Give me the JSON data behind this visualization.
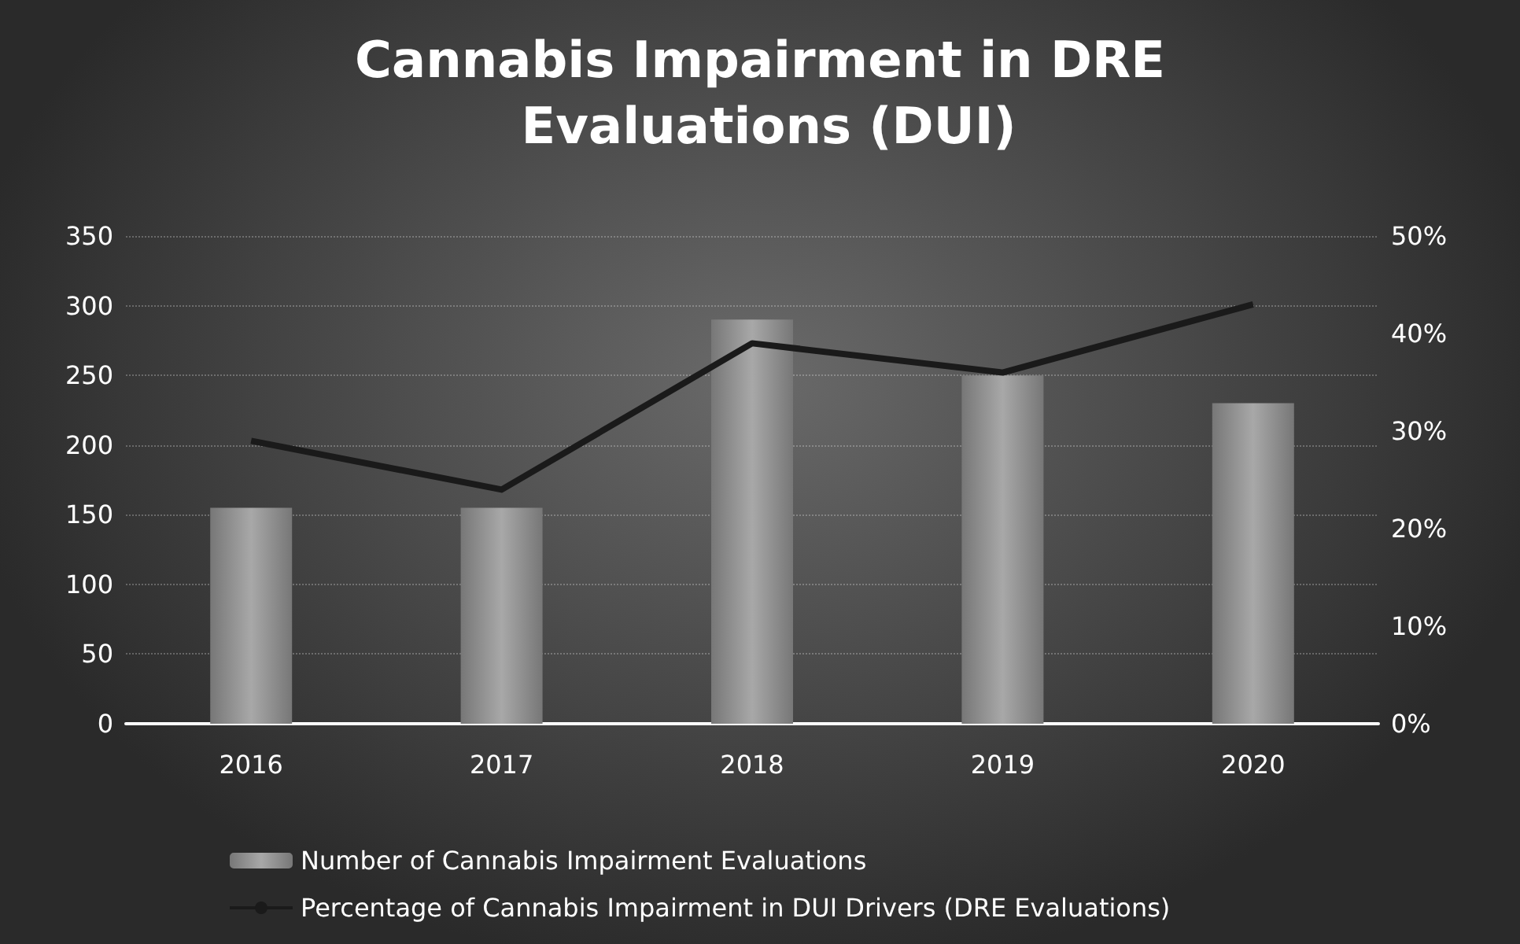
{
  "chart_data": {
    "type": "bar",
    "title": "Cannabis Impairment in DRE Evaluations (DUI)",
    "categories": [
      "2016",
      "2017",
      "2018",
      "2019",
      "2020"
    ],
    "series": [
      {
        "name": "Number of Cannabis Impairment Evaluations",
        "color": "#a8a8a8",
        "values": [
          155,
          155,
          290,
          250,
          230
        ]
      },
      {
        "name": "Percentage of Cannabis Impairment in DUI Drivers (DRE Evaluations)",
        "type": "line",
        "axis": "y2",
        "color": "#1a1a1a",
        "values": [
          29,
          24,
          39,
          36,
          43
        ]
      }
    ],
    "ylim": [
      0,
      350
    ],
    "yticks": [
      0,
      50,
      100,
      150,
      200,
      250,
      300,
      350
    ],
    "y2lim": [
      0,
      50
    ],
    "y2ticks": [
      {
        "value": 0,
        "label": "0%"
      },
      {
        "value": 10,
        "label": "10%"
      },
      {
        "value": 20,
        "label": "20%"
      },
      {
        "value": 30,
        "label": "30%"
      },
      {
        "value": 40,
        "label": "40%"
      },
      {
        "value": 50,
        "label": "50%"
      }
    ],
    "grid": "y",
    "legend": "bottom",
    "marker": "none"
  }
}
